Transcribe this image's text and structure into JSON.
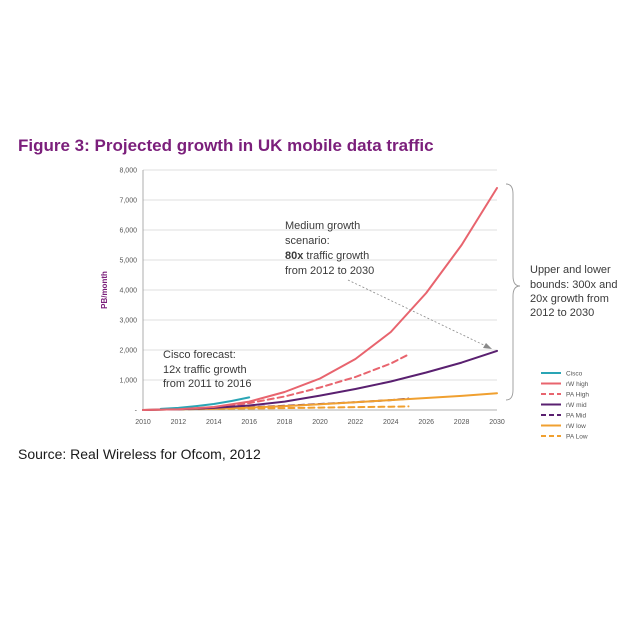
{
  "figure_title": "Figure 3: Projected growth in UK mobile data traffic",
  "source": "Source: Real Wireless for Ofcom, 2012",
  "colors": {
    "title": "#7b1f7b",
    "cisco": "#2aa5b5",
    "rw_high": "#e8646e",
    "rw_mid": "#5a2070",
    "rw_low": "#f0a030",
    "grid": "#d4d4d4"
  },
  "annotations": {
    "medium": {
      "line1": "Medium growth",
      "line2": "scenario:",
      "line3_bold": "80x",
      "line3_rest": " traffic growth",
      "line4": "from 2012 to 2030"
    },
    "cisco": {
      "line1": "Cisco forecast:",
      "line2": "12x traffic growth",
      "line3": "from 2011 to 2016"
    },
    "bounds": {
      "line1": "Upper and lower",
      "line2": "bounds: 300x and",
      "line3": "20x growth from",
      "line4": "2012 to 2030"
    }
  },
  "chart_data": {
    "type": "line",
    "title": "Figure 3: Projected growth in UK mobile data traffic",
    "xlabel": "",
    "ylabel": "PB/month",
    "xlim": [
      2010,
      2030
    ],
    "ylim": [
      0,
      8000
    ],
    "grid": true,
    "legend_position": "right",
    "x_ticks": [
      "2010",
      "2012",
      "2014",
      "2016",
      "2018",
      "2020",
      "2022",
      "2024",
      "2026",
      "2028",
      "2030"
    ],
    "y_ticks": [
      "-",
      "1,000",
      "2,000",
      "3,000",
      "4,000",
      "5,000",
      "6,000",
      "7,000",
      "8,000"
    ],
    "series": [
      {
        "name": "Cisco",
        "style": "solid",
        "color": "#2aa5b5",
        "x": [
          2011,
          2012,
          2013,
          2014,
          2015,
          2016
        ],
        "y": [
          35,
          70,
          130,
          200,
          300,
          420
        ]
      },
      {
        "name": "rW high",
        "style": "solid",
        "color": "#e8646e",
        "x": [
          2010,
          2012,
          2014,
          2016,
          2018,
          2020,
          2022,
          2024,
          2026,
          2028,
          2030
        ],
        "y": [
          0,
          25,
          100,
          280,
          600,
          1050,
          1700,
          2600,
          3900,
          5500,
          7400
        ]
      },
      {
        "name": "PA High",
        "style": "dashed",
        "color": "#e8646e",
        "x": [
          2012,
          2014,
          2016,
          2018,
          2020,
          2022,
          2024,
          2025
        ],
        "y": [
          25,
          90,
          230,
          450,
          750,
          1100,
          1550,
          1850
        ]
      },
      {
        "name": "rW mid",
        "style": "solid",
        "color": "#5a2070",
        "x": [
          2010,
          2012,
          2014,
          2016,
          2018,
          2020,
          2022,
          2024,
          2026,
          2028,
          2030
        ],
        "y": [
          0,
          25,
          70,
          150,
          280,
          480,
          700,
          950,
          1250,
          1580,
          1970
        ]
      },
      {
        "name": "PA Mid",
        "style": "dashed",
        "color": "#5a2070",
        "x": [
          2012,
          2014,
          2016,
          2018,
          2020,
          2022,
          2024,
          2025
        ],
        "y": [
          25,
          50,
          90,
          140,
          200,
          260,
          330,
          380
        ]
      },
      {
        "name": "rW low",
        "style": "solid",
        "color": "#f0a030",
        "x": [
          2010,
          2012,
          2014,
          2016,
          2018,
          2020,
          2022,
          2024,
          2026,
          2028,
          2030
        ],
        "y": [
          0,
          25,
          45,
          80,
          130,
          190,
          260,
          330,
          400,
          470,
          560
        ]
      },
      {
        "name": "PA Low",
        "style": "dashed",
        "color": "#f0a030",
        "x": [
          2012,
          2014,
          2016,
          2018,
          2020,
          2022,
          2024,
          2025
        ],
        "y": [
          25,
          35,
          50,
          65,
          80,
          95,
          110,
          120
        ]
      }
    ]
  }
}
